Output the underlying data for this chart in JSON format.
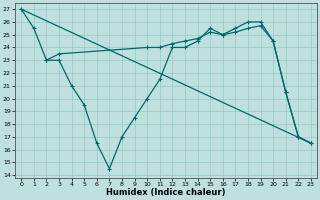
{
  "xlabel": "Humidex (Indice chaleur)",
  "bg_color": "#c0e0e0",
  "grid_color": "#98c8c8",
  "line_color": "#006868",
  "xlim": [
    -0.5,
    23.5
  ],
  "ylim": [
    13.8,
    27.5
  ],
  "yticks": [
    14,
    15,
    16,
    17,
    18,
    19,
    20,
    21,
    22,
    23,
    24,
    25,
    26,
    27
  ],
  "xticks": [
    0,
    1,
    2,
    3,
    4,
    5,
    6,
    7,
    8,
    9,
    10,
    11,
    12,
    13,
    14,
    15,
    16,
    17,
    18,
    19,
    20,
    21,
    22,
    23
  ],
  "line1_x": [
    0,
    1,
    2,
    3,
    4,
    5,
    6,
    7,
    8,
    9,
    10,
    11,
    12,
    13,
    14,
    15,
    16,
    17,
    18,
    19,
    20,
    21,
    22,
    23
  ],
  "line1_y": [
    27.0,
    25.5,
    23.0,
    23.0,
    21.0,
    19.5,
    16.5,
    14.5,
    17.0,
    18.5,
    20.0,
    21.5,
    24.0,
    24.0,
    24.5,
    25.5,
    25.0,
    25.5,
    26.0,
    26.0,
    24.5,
    20.5,
    17.0,
    16.5
  ],
  "line2_x": [
    2,
    3,
    10,
    11,
    12,
    13,
    14,
    15,
    16,
    17,
    18,
    19,
    20,
    21,
    22,
    23
  ],
  "line2_y": [
    23.0,
    23.5,
    24.0,
    24.0,
    24.3,
    24.5,
    24.7,
    25.2,
    25.0,
    25.2,
    25.5,
    25.7,
    24.5,
    20.5,
    17.0,
    16.5
  ],
  "line3_x": [
    0,
    23
  ],
  "line3_y": [
    27.0,
    16.5
  ]
}
